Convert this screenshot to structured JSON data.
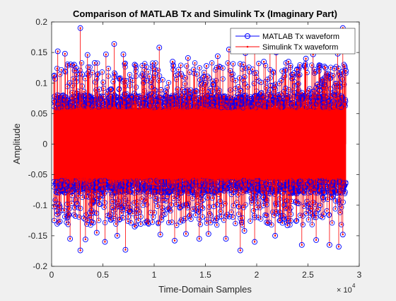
{
  "chart_data": {
    "type": "stem",
    "title": "Comparison of MATLAB Tx and Simulink Tx (Imaginary Part)",
    "xlabel": "Time-Domain Samples",
    "ylabel": "Amplitude",
    "x_exponent_label": "× 10",
    "x_exponent_power": "4",
    "xlim": [
      0,
      3
    ],
    "ylim": [
      -0.2,
      0.2
    ],
    "x_unit_note": "x values are in units of 10^4 samples",
    "xticks": [
      0,
      0.5,
      1,
      1.5,
      2,
      2.5,
      3
    ],
    "xtick_labels": [
      "0",
      "0.5",
      "1",
      "1.5",
      "2",
      "2.5",
      "3"
    ],
    "yticks": [
      -0.2,
      -0.15,
      -0.1,
      -0.05,
      0,
      0.05,
      0.1,
      0.15,
      0.2
    ],
    "ytick_labels": [
      "-0.2",
      "-0.15",
      "-0.1",
      "-0.05",
      "0",
      "0.05",
      "0.1",
      "0.15",
      "0.2"
    ],
    "data_range_x": [
      0.02,
      2.87
    ],
    "core_band": [
      -0.07,
      0.07
    ],
    "grid": false,
    "legend_position": "top-right",
    "series": [
      {
        "name": "MATLAB Tx waveform",
        "color": "#0000ff",
        "marker": "circle",
        "style": "stem"
      },
      {
        "name": "Simulink Tx waveform",
        "color": "#ff0000",
        "marker": "dot",
        "style": "stem"
      }
    ],
    "peaks": [
      {
        "x": 0.06,
        "y": 0.152
      },
      {
        "x": 0.13,
        "y": 0.148
      },
      {
        "x": 0.22,
        "y": 0.13
      },
      {
        "x": 0.28,
        "y": 0.19
      },
      {
        "x": 0.35,
        "y": 0.146
      },
      {
        "x": 0.42,
        "y": 0.133
      },
      {
        "x": 0.53,
        "y": 0.147
      },
      {
        "x": 0.61,
        "y": 0.164
      },
      {
        "x": 0.7,
        "y": 0.147
      },
      {
        "x": 0.81,
        "y": 0.13
      },
      {
        "x": 1.05,
        "y": 0.158
      },
      {
        "x": 1.18,
        "y": 0.135
      },
      {
        "x": 1.33,
        "y": 0.141
      },
      {
        "x": 1.51,
        "y": 0.128
      },
      {
        "x": 1.62,
        "y": 0.144
      },
      {
        "x": 1.73,
        "y": 0.155
      },
      {
        "x": 1.89,
        "y": 0.149
      },
      {
        "x": 1.98,
        "y": 0.156
      },
      {
        "x": 2.07,
        "y": 0.135
      },
      {
        "x": 2.13,
        "y": 0.158
      },
      {
        "x": 2.19,
        "y": 0.15
      },
      {
        "x": 2.31,
        "y": 0.135
      },
      {
        "x": 2.48,
        "y": 0.14
      },
      {
        "x": 2.55,
        "y": 0.147
      },
      {
        "x": 2.67,
        "y": 0.125
      },
      {
        "x": 2.79,
        "y": 0.148
      },
      {
        "x": 2.84,
        "y": 0.19
      },
      {
        "x": 2.87,
        "y": 0.12
      },
      {
        "x": 0.18,
        "y": -0.155
      },
      {
        "x": 0.28,
        "y": -0.174
      },
      {
        "x": 0.33,
        "y": -0.156
      },
      {
        "x": 0.44,
        "y": -0.145
      },
      {
        "x": 0.52,
        "y": -0.16
      },
      {
        "x": 0.64,
        "y": -0.15
      },
      {
        "x": 0.72,
        "y": -0.173
      },
      {
        "x": 0.81,
        "y": -0.135
      },
      {
        "x": 1.06,
        "y": -0.148
      },
      {
        "x": 1.2,
        "y": -0.158
      },
      {
        "x": 1.31,
        "y": -0.147
      },
      {
        "x": 1.44,
        "y": -0.155
      },
      {
        "x": 1.53,
        "y": -0.147
      },
      {
        "x": 1.7,
        "y": -0.155
      },
      {
        "x": 1.84,
        "y": -0.174
      },
      {
        "x": 1.88,
        "y": -0.142
      },
      {
        "x": 1.98,
        "y": -0.16
      },
      {
        "x": 2.18,
        "y": -0.15
      },
      {
        "x": 2.3,
        "y": -0.133
      },
      {
        "x": 2.44,
        "y": -0.165
      },
      {
        "x": 2.58,
        "y": -0.157
      },
      {
        "x": 2.71,
        "y": -0.165
      },
      {
        "x": 2.8,
        "y": -0.168
      },
      {
        "x": 2.84,
        "y": -0.148
      }
    ]
  }
}
